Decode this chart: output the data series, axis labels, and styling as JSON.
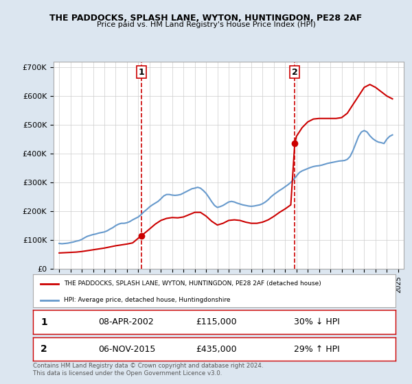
{
  "title": "THE PADDOCKS, SPLASH LANE, WYTON, HUNTINGDON, PE28 2AF",
  "subtitle": "Price paid vs. HM Land Registry's House Price Index (HPI)",
  "property_color": "#cc0000",
  "hpi_color": "#6699cc",
  "background_color": "#dce6f0",
  "plot_bg_color": "#ffffff",
  "ylim": [
    0,
    720000
  ],
  "yticks": [
    0,
    100000,
    200000,
    300000,
    400000,
    500000,
    600000,
    700000
  ],
  "xlim_start": 1994.5,
  "xlim_end": 2025.5,
  "sale1_x": 2002.27,
  "sale1_y": 115000,
  "sale2_x": 2015.85,
  "sale2_y": 435000,
  "legend_property": "THE PADDOCKS, SPLASH LANE, WYTON, HUNTINGDON, PE28 2AF (detached house)",
  "legend_hpi": "HPI: Average price, detached house, Huntingdonshire",
  "info1_label": "1",
  "info1_date": "08-APR-2002",
  "info1_price": "£115,000",
  "info1_hpi": "30% ↓ HPI",
  "info2_label": "2",
  "info2_date": "06-NOV-2015",
  "info2_price": "£435,000",
  "info2_hpi": "29% ↑ HPI",
  "footer": "Contains HM Land Registry data © Crown copyright and database right 2024.\nThis data is licensed under the Open Government Licence v3.0.",
  "hpi_data_x": [
    1995,
    1995.25,
    1995.5,
    1995.75,
    1996,
    1996.25,
    1996.5,
    1996.75,
    1997,
    1997.25,
    1997.5,
    1997.75,
    1998,
    1998.25,
    1998.5,
    1998.75,
    1999,
    1999.25,
    1999.5,
    1999.75,
    2000,
    2000.25,
    2000.5,
    2000.75,
    2001,
    2001.25,
    2001.5,
    2001.75,
    2002,
    2002.25,
    2002.5,
    2002.75,
    2003,
    2003.25,
    2003.5,
    2003.75,
    2004,
    2004.25,
    2004.5,
    2004.75,
    2005,
    2005.25,
    2005.5,
    2005.75,
    2006,
    2006.25,
    2006.5,
    2006.75,
    2007,
    2007.25,
    2007.5,
    2007.75,
    2008,
    2008.25,
    2008.5,
    2008.75,
    2009,
    2009.25,
    2009.5,
    2009.75,
    2010,
    2010.25,
    2010.5,
    2010.75,
    2011,
    2011.25,
    2011.5,
    2011.75,
    2012,
    2012.25,
    2012.5,
    2012.75,
    2013,
    2013.25,
    2013.5,
    2013.75,
    2014,
    2014.25,
    2014.5,
    2014.75,
    2015,
    2015.25,
    2015.5,
    2015.75,
    2016,
    2016.25,
    2016.5,
    2016.75,
    2017,
    2017.25,
    2017.5,
    2017.75,
    2018,
    2018.25,
    2018.5,
    2018.75,
    2019,
    2019.25,
    2019.5,
    2019.75,
    2020,
    2020.25,
    2020.5,
    2020.75,
    2021,
    2021.25,
    2021.5,
    2021.75,
    2022,
    2022.25,
    2022.5,
    2022.75,
    2023,
    2023.25,
    2023.5,
    2023.75,
    2024,
    2024.25,
    2024.5
  ],
  "hpi_data_y": [
    88000,
    87000,
    88000,
    89000,
    91000,
    93000,
    96000,
    98000,
    102000,
    108000,
    113000,
    116000,
    119000,
    121000,
    124000,
    126000,
    128000,
    132000,
    138000,
    143000,
    150000,
    155000,
    158000,
    158000,
    160000,
    164000,
    170000,
    175000,
    180000,
    188000,
    198000,
    206000,
    215000,
    222000,
    228000,
    234000,
    243000,
    253000,
    258000,
    258000,
    256000,
    255000,
    256000,
    258000,
    263000,
    268000,
    273000,
    278000,
    280000,
    283000,
    280000,
    272000,
    262000,
    248000,
    233000,
    220000,
    213000,
    216000,
    220000,
    226000,
    232000,
    234000,
    232000,
    228000,
    225000,
    222000,
    220000,
    218000,
    217000,
    218000,
    220000,
    222000,
    226000,
    232000,
    240000,
    250000,
    258000,
    265000,
    272000,
    278000,
    285000,
    292000,
    300000,
    310000,
    322000,
    334000,
    340000,
    344000,
    348000,
    352000,
    355000,
    357000,
    358000,
    360000,
    363000,
    366000,
    368000,
    370000,
    372000,
    374000,
    375000,
    376000,
    380000,
    390000,
    410000,
    435000,
    460000,
    475000,
    480000,
    475000,
    462000,
    452000,
    445000,
    440000,
    438000,
    435000,
    450000,
    460000,
    465000
  ],
  "property_data_x": [
    1995,
    1995.5,
    1996,
    1996.5,
    1997,
    1997.5,
    1998,
    1998.5,
    1999,
    1999.5,
    2000,
    2000.5,
    2001,
    2001.5,
    2002.27,
    2002.75,
    2003.5,
    2004,
    2004.5,
    2005,
    2005.5,
    2006,
    2006.5,
    2007,
    2007.5,
    2008,
    2008.5,
    2009,
    2009.5,
    2010,
    2010.5,
    2011,
    2011.5,
    2012,
    2012.5,
    2013,
    2013.5,
    2014,
    2014.5,
    2015,
    2015.5,
    2015.85,
    2016,
    2016.5,
    2017,
    2017.5,
    2018,
    2018.5,
    2019,
    2019.5,
    2020,
    2020.5,
    2021,
    2021.5,
    2022,
    2022.5,
    2023,
    2023.5,
    2024,
    2024.5
  ],
  "property_data_y": [
    55000,
    56000,
    57000,
    58000,
    60000,
    63000,
    66000,
    69000,
    72000,
    76000,
    80000,
    83000,
    86000,
    90000,
    115000,
    130000,
    155000,
    168000,
    175000,
    178000,
    177000,
    180000,
    188000,
    196000,
    196000,
    183000,
    165000,
    152000,
    158000,
    168000,
    170000,
    168000,
    162000,
    158000,
    158000,
    162000,
    170000,
    182000,
    196000,
    208000,
    222000,
    435000,
    460000,
    490000,
    510000,
    520000,
    522000,
    522000,
    522000,
    522000,
    525000,
    540000,
    570000,
    600000,
    630000,
    640000,
    630000,
    615000,
    600000,
    590000
  ]
}
